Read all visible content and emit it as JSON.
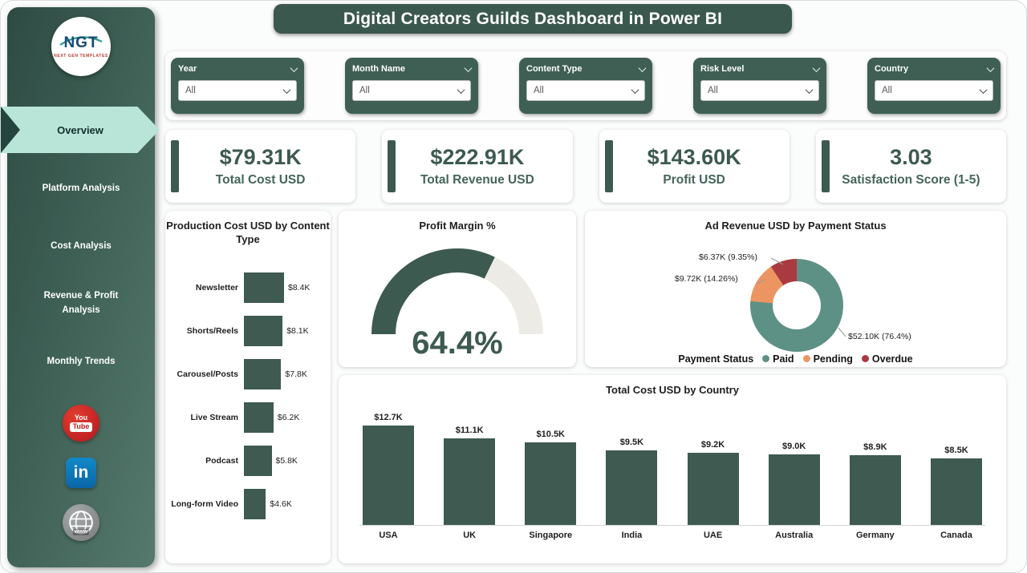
{
  "title": "Digital Creators Guilds Dashboard in Power BI",
  "logo": {
    "text": "NGT",
    "subtext": "NEXT GEN TEMPLATES"
  },
  "sidebar": {
    "items": [
      {
        "label": "Overview",
        "active": true
      },
      {
        "label": "Platform Analysis",
        "active": false
      },
      {
        "label": "Cost Analysis",
        "active": false
      },
      {
        "label": "Revenue & Profit Analysis",
        "active": false
      },
      {
        "label": "Monthly Trends",
        "active": false
      }
    ],
    "social": [
      {
        "name": "youtube",
        "icon_text_top": "You",
        "icon_text_bottom": "Tube"
      },
      {
        "name": "linkedin",
        "icon_text": "in"
      },
      {
        "name": "website",
        "icon_text": "www"
      }
    ]
  },
  "filters": [
    {
      "label": "Year",
      "value": "All"
    },
    {
      "label": "Month Name",
      "value": "All"
    },
    {
      "label": "Content Type",
      "value": "All"
    },
    {
      "label": "Risk Level",
      "value": "All"
    },
    {
      "label": "Country",
      "value": "All"
    }
  ],
  "kpis": [
    {
      "value": "$79.31K",
      "label": "Total Cost USD"
    },
    {
      "value": "$222.91K",
      "label": "Total Revenue USD"
    },
    {
      "value": "$143.60K",
      "label": "Profit USD"
    },
    {
      "value": "3.03",
      "label": "Satisfaction Score (1-5)"
    }
  ],
  "colors": {
    "primary_green": "#3d5a50",
    "active_tab": "#b9e4d8",
    "paid": "#5d9185",
    "pending": "#ec9562",
    "overdue": "#a93a3f",
    "gauge_track": "#edebe5",
    "youtube_red": "#c11b1f",
    "linkedin_blue": "#0a66a8"
  },
  "chart_data": [
    {
      "type": "bar",
      "orientation": "horizontal",
      "title": "Production Cost USD by Content Type",
      "categories": [
        "Newsletter",
        "Shorts/Reels",
        "Carousel/Posts",
        "Live Stream",
        "Podcast",
        "Long-form Video"
      ],
      "values": [
        8.4,
        8.1,
        7.8,
        6.2,
        5.8,
        4.6
      ],
      "value_labels": [
        "$8.4K",
        "$8.1K",
        "$7.8K",
        "$6.2K",
        "$5.8K",
        "$4.6K"
      ],
      "xlim": [
        0,
        8.4
      ],
      "bar_color": "#3e5a51"
    },
    {
      "type": "gauge",
      "title": "Profit Margin %",
      "value": 64.4,
      "min": 0,
      "max": 100,
      "value_label": "64.4%"
    },
    {
      "type": "pie",
      "title": "Ad Revenue USD by Payment Status",
      "legend_title": "Payment Status",
      "legend_position": "bottom",
      "slices": [
        {
          "name": "Paid",
          "value": 52.1,
          "pct": 76.4,
          "label": "$52.10K (76.4%)",
          "color": "#5d9185"
        },
        {
          "name": "Pending",
          "value": 9.72,
          "pct": 14.26,
          "label": "$9.72K (14.26%)",
          "color": "#ec9562"
        },
        {
          "name": "Overdue",
          "value": 6.37,
          "pct": 9.35,
          "label": "$6.37K (9.35%)",
          "color": "#a93a3f"
        }
      ]
    },
    {
      "type": "bar",
      "orientation": "vertical",
      "title": "Total Cost USD by Country",
      "categories": [
        "USA",
        "UK",
        "Singapore",
        "India",
        "UAE",
        "Australia",
        "Germany",
        "Canada"
      ],
      "values": [
        12.7,
        11.1,
        10.5,
        9.5,
        9.2,
        9.0,
        8.9,
        8.5
      ],
      "value_labels": [
        "$12.7K",
        "$11.1K",
        "$10.5K",
        "$9.5K",
        "$9.2K",
        "$9.0K",
        "$8.9K",
        "$8.5K"
      ],
      "ylim": [
        0,
        12.7
      ],
      "bar_color": "#3e5a51"
    }
  ]
}
